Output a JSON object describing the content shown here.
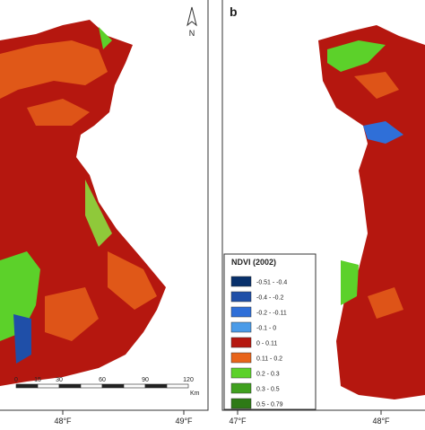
{
  "left_panel": {
    "north_label": "N",
    "scale_bar": {
      "ticks": [
        "0",
        "15",
        "30",
        "60",
        "90",
        "120"
      ],
      "unit": "Km"
    },
    "longitudes": [
      "48°F",
      "49°F"
    ]
  },
  "right_panel": {
    "panel_label": "b",
    "legend": {
      "title": "NDVI (2002)",
      "items": [
        {
          "label": "-0.51 - -0.4",
          "color": "#08306b"
        },
        {
          "label": "-0.4 - -0.2",
          "color": "#1f4fa8"
        },
        {
          "label": "-0.2 - -0.11",
          "color": "#2f6fd8"
        },
        {
          "label": "-0.1 - 0",
          "color": "#4a9be8"
        },
        {
          "label": "0 - 0.11",
          "color": "#b5170f"
        },
        {
          "label": "0.11 - 0.2",
          "color": "#e8641a"
        },
        {
          "label": "0.2 - 0.3",
          "color": "#5cd12a"
        },
        {
          "label": "0.3 - 0.5",
          "color": "#3fa01e"
        },
        {
          "label": "0.5 - 0.79",
          "color": "#2e7a16"
        }
      ]
    },
    "longitudes": [
      "47°F",
      "48°F"
    ]
  }
}
